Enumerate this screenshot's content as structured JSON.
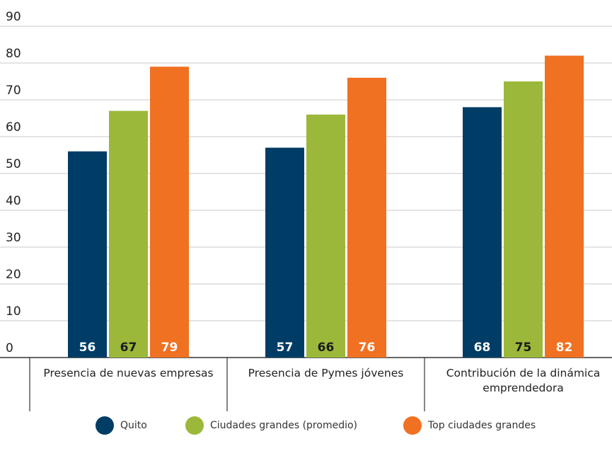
{
  "chart_data": {
    "type": "bar",
    "categories": [
      "Presencia de nuevas empresas",
      "Presencia de Pymes jóvenes",
      "Contribución de la dinámica emprendedora"
    ],
    "series": [
      {
        "name": "Quito",
        "color": "#003d66",
        "label_color": "#ffffff",
        "values": [
          56,
          57,
          68
        ]
      },
      {
        "name": "Ciudades grandes (promedio)",
        "color": "#9bb83a",
        "label_color": "#1a1a1a",
        "values": [
          67,
          66,
          75
        ]
      },
      {
        "name": "Top ciudades grandes",
        "color": "#f07122",
        "label_color": "#ffffff",
        "values": [
          79,
          76,
          82
        ]
      }
    ],
    "ylim": [
      0,
      90
    ],
    "yticks": [
      0,
      10,
      20,
      30,
      40,
      50,
      60,
      70,
      80,
      90
    ],
    "grid": true
  }
}
